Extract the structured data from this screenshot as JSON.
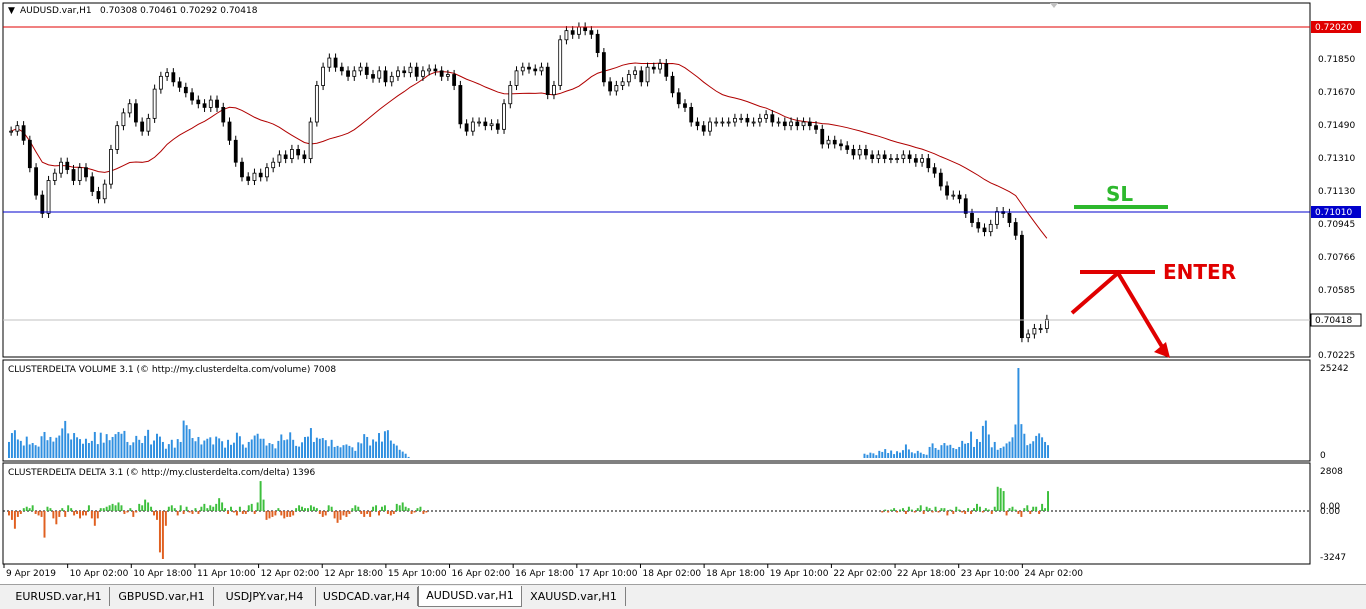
{
  "main_chart": {
    "symbol_label": "AUDUSD.var,H1",
    "ohlc": "0.70308 0.70461 0.70292 0.70418",
    "price_labels": [
      "0.71850",
      "0.71670",
      "0.71490",
      "0.71310",
      "0.71130",
      "0.70945",
      "0.70766",
      "0.70585",
      "0.70225"
    ],
    "resistance_price": "0.72020",
    "sl_price": "0.71010",
    "current_price": "0.70418",
    "annotation_sl": "SL",
    "annotation_enter": "ENTER",
    "colors": {
      "resistance": "#e00000",
      "sl_line": "#0000cc",
      "ma": "#b00000",
      "sl_mark": "#2db82d",
      "enter_mark": "#e00000",
      "candle": "#000000"
    }
  },
  "chart_data": [
    {
      "type": "candlestick",
      "title": "AUDUSD.var,H1",
      "close": [
        0.7145,
        0.7148,
        0.714,
        0.7125,
        0.711,
        0.71,
        0.7118,
        0.7122,
        0.7128,
        0.7124,
        0.7118,
        0.7125,
        0.712,
        0.7112,
        0.7108,
        0.7116,
        0.7135,
        0.7148,
        0.7155,
        0.716,
        0.715,
        0.7145,
        0.7152,
        0.7168,
        0.7175,
        0.7177,
        0.7172,
        0.7169,
        0.7166,
        0.7162,
        0.716,
        0.7158,
        0.7162,
        0.7158,
        0.715,
        0.714,
        0.7128,
        0.712,
        0.7118,
        0.7122,
        0.712,
        0.7125,
        0.7128,
        0.7132,
        0.713,
        0.7135,
        0.7132,
        0.713,
        0.715,
        0.717,
        0.718,
        0.7185,
        0.718,
        0.7178,
        0.7175,
        0.7178,
        0.718,
        0.7176,
        0.7174,
        0.7178,
        0.7172,
        0.7175,
        0.7178,
        0.7177,
        0.718,
        0.7175,
        0.7178,
        0.7179,
        0.7178,
        0.7175,
        0.7176,
        0.717,
        0.7149,
        0.7145,
        0.715,
        0.715,
        0.7148,
        0.7149,
        0.7146,
        0.716,
        0.717,
        0.7178,
        0.718,
        0.7179,
        0.7178,
        0.718,
        0.7165,
        0.717,
        0.7195,
        0.72,
        0.7198,
        0.7202,
        0.72,
        0.7198,
        0.7188,
        0.7172,
        0.7167,
        0.717,
        0.7172,
        0.7176,
        0.7178,
        0.7172,
        0.718,
        0.7179,
        0.7182,
        0.7175,
        0.7166,
        0.716,
        0.7158,
        0.715,
        0.7148,
        0.7145,
        0.715,
        0.715,
        0.715,
        0.715,
        0.7152,
        0.7152,
        0.715,
        0.715,
        0.7152,
        0.7154,
        0.715,
        0.715,
        0.7148,
        0.715,
        0.7148,
        0.715,
        0.7148,
        0.7146,
        0.7138,
        0.714,
        0.7138,
        0.7137,
        0.7135,
        0.7132,
        0.7135,
        0.7132,
        0.713,
        0.7132,
        0.713,
        0.713,
        0.713,
        0.7132,
        0.713,
        0.7128,
        0.713,
        0.7125,
        0.7122,
        0.7115,
        0.711,
        0.711,
        0.7108,
        0.71,
        0.7095,
        0.7092,
        0.709,
        0.7094,
        0.7101,
        0.71,
        0.7095,
        0.7088,
        0.7032,
        0.7034,
        0.7037,
        0.7037,
        0.7042
      ],
      "resistance": 0.7202,
      "sl_level": 0.7101,
      "last_price": 0.70418,
      "ylim": [
        0.70225,
        0.7202
      ],
      "x_labels": [
        "9 Apr 2019",
        "10 Apr 02:00",
        "10 Apr 18:00",
        "11 Apr 10:00",
        "12 Apr 02:00",
        "12 Apr 18:00",
        "15 Apr 10:00",
        "16 Apr 02:00",
        "16 Apr 18:00",
        "17 Apr 10:00",
        "18 Apr 02:00",
        "18 Apr 18:00",
        "19 Apr 10:00",
        "22 Apr 02:00",
        "22 Apr 18:00",
        "23 Apr 10:00",
        "24 Apr 02:00"
      ]
    },
    {
      "type": "bar",
      "title": "CLUSTERDELTA VOLUME 3.1 (© http://my.clusterdelta.com/volume) 7008",
      "values": [
        4500,
        7000,
        7800,
        5200,
        4800,
        3500,
        6000,
        3800,
        4200,
        3600,
        3200,
        6100,
        7300,
        5000,
        5900,
        4600,
        5700,
        6300,
        8300,
        10400,
        6900,
        5200,
        7000,
        5800,
        5300,
        4000,
        5400,
        4200,
        4800,
        7300,
        3900,
        7100,
        4300,
        6700,
        5000,
        5900,
        6700,
        7300,
        6800,
        7600,
        4500,
        3600,
        4400,
        6200,
        5100,
        4200,
        6200,
        7900,
        3800,
        4900,
        6800,
        6000,
        4500,
        2600,
        3900,
        5100,
        2900,
        5300,
        4500,
        10500,
        9200,
        8100,
        5600,
        4700,
        5900,
        3800,
        4900,
        5400,
        5800,
        3800,
        6000,
        5500,
        4700,
        2900,
        5100,
        3700,
        4300,
        7100,
        6100,
        3800,
        2900,
        4500,
        5200,
        6300,
        6800,
        5400,
        5400,
        3500,
        4200,
        3900,
        2700,
        4800,
        6600,
        5000,
        5200,
        7200,
        5100,
        3400,
        3200,
        4400,
        5900,
        6000,
        8400,
        4500,
        5700,
        5400,
        5600,
        5000,
        3300,
        5100,
        3100,
        3400,
        3000,
        3600,
        3800,
        3400,
        3000,
        2000,
        4400,
        4100,
        6700,
        5900,
        3500,
        5200,
        4600,
        7000,
        4600,
        7500,
        7800,
        4900,
        4000,
        3500,
        2300,
        1800,
        1200,
        300,
        0,
        0,
        0,
        0,
        0,
        0,
        0,
        0,
        0,
        0,
        0,
        0,
        0,
        0,
        0,
        0,
        0,
        0,
        0,
        0,
        0,
        0,
        0,
        0,
        0,
        0,
        0,
        0,
        0,
        0,
        0,
        0,
        0,
        0,
        0,
        0,
        0,
        0,
        0,
        0,
        0,
        0,
        0,
        0,
        0,
        0,
        0,
        0,
        0,
        0,
        0,
        0,
        0,
        0,
        0,
        0,
        0,
        0,
        0,
        0,
        0,
        0,
        0,
        0,
        0,
        0,
        0,
        0,
        0,
        0,
        0,
        0,
        0,
        0,
        0,
        0,
        0,
        0,
        0,
        0,
        0,
        0,
        0,
        0,
        0,
        0,
        0,
        0,
        0,
        0,
        0,
        0,
        0,
        0,
        0,
        0,
        0,
        0,
        0,
        0,
        0,
        0,
        0,
        0,
        0,
        0,
        0,
        0,
        0,
        0,
        0,
        0,
        0,
        0,
        0,
        0,
        0,
        0,
        0,
        0,
        0,
        0,
        0,
        0,
        0,
        0,
        0,
        0,
        0,
        0,
        0,
        0,
        0,
        0,
        0,
        0,
        0,
        0,
        0,
        0,
        0,
        0,
        0,
        0,
        0,
        0,
        0,
        0,
        0,
        0,
        0,
        0,
        0,
        1200,
        900,
        1500,
        1300,
        800,
        2000,
        1700,
        2500,
        1400,
        2100,
        1100,
        1900,
        1500,
        2200,
        3800,
        2400,
        1600,
        1300,
        2000,
        1500,
        1100,
        900,
        3100,
        4100,
        2800,
        2300,
        3600,
        4200,
        3500,
        3700,
        2800,
        2500,
        3100,
        4800,
        4000,
        4200,
        7400,
        3100,
        5300,
        4500,
        9000,
        10500,
        6600,
        3000,
        4500,
        2300,
        2800,
        3200,
        4100,
        4600,
        5800,
        9400,
        25242,
        9500,
        6800,
        3600,
        4000,
        4700,
        6200,
        6900,
        5800,
        4500,
        3600
      ],
      "ylim": [
        0,
        25242
      ],
      "tick_labels": [
        "25242",
        "0"
      ]
    },
    {
      "type": "bar",
      "title": "CLUSTERDELTA DELTA 3.1 (© http://my.clusterdelta.com/delta) 1396",
      "values": [
        -300,
        -600,
        -1200,
        -400,
        -200,
        200,
        300,
        200,
        400,
        -200,
        -300,
        -400,
        -1800,
        300,
        200,
        -500,
        -900,
        -400,
        200,
        -400,
        400,
        200,
        -300,
        -200,
        -500,
        -300,
        -300,
        400,
        -500,
        -1000,
        -500,
        200,
        200,
        300,
        400,
        500,
        400,
        600,
        400,
        -200,
        -100,
        200,
        -400,
        -100,
        500,
        400,
        800,
        600,
        300,
        -300,
        -600,
        -2800,
        -3247,
        -1000,
        300,
        400,
        200,
        -300,
        400,
        -200,
        300,
        -100,
        -200,
        200,
        -200,
        300,
        500,
        200,
        400,
        300,
        500,
        900,
        600,
        200,
        -200,
        300,
        -100,
        -300,
        300,
        -200,
        -200,
        400,
        500,
        -200,
        600,
        2100,
        800,
        -600,
        -500,
        -400,
        -300,
        200,
        -300,
        -500,
        -400,
        -400,
        -300,
        200,
        400,
        300,
        200,
        200,
        400,
        300,
        200,
        -200,
        -400,
        -300,
        400,
        300,
        -500,
        -800,
        -600,
        -300,
        -400,
        -200,
        200,
        400,
        300,
        -200,
        -400,
        -200,
        -400,
        300,
        400,
        -300,
        300,
        400,
        -200,
        -300,
        -200,
        500,
        400,
        600,
        300,
        200,
        -200,
        -100,
        200,
        300,
        -200,
        -100,
        0,
        0,
        0,
        0,
        0,
        0,
        0,
        0,
        0,
        0,
        0,
        0,
        0,
        0,
        0,
        0,
        0,
        0,
        0,
        0,
        0,
        0,
        0,
        0,
        0,
        0,
        0,
        0,
        0,
        0,
        0,
        0,
        0,
        0,
        0,
        0,
        0,
        0,
        0,
        0,
        0,
        0,
        0,
        0,
        0,
        0,
        0,
        0,
        0,
        0,
        0,
        0,
        0,
        0,
        0,
        0,
        0,
        0,
        0,
        0,
        0,
        0,
        0,
        0,
        0,
        0,
        0,
        0,
        0,
        0,
        0,
        0,
        0,
        0,
        0,
        0,
        0,
        0,
        0,
        0,
        0,
        0,
        0,
        0,
        0,
        0,
        0,
        0,
        0,
        0,
        0,
        0,
        0,
        0,
        0,
        0,
        0,
        0,
        0,
        0,
        0,
        0,
        0,
        0,
        0,
        0,
        0,
        0,
        0,
        0,
        0,
        0,
        0,
        0,
        0,
        0,
        0,
        0,
        0,
        0,
        0,
        0,
        0,
        0,
        0,
        0,
        0,
        0,
        0,
        0,
        0,
        0,
        0,
        0,
        0,
        0,
        0,
        0,
        0,
        0,
        0,
        0,
        0,
        0,
        0,
        0,
        0,
        0,
        0,
        0,
        0,
        0,
        0,
        -100,
        100,
        -100,
        100,
        200,
        -100,
        100,
        200,
        -200,
        300,
        100,
        -100,
        200,
        400,
        -200,
        300,
        200,
        -100,
        300,
        -100,
        200,
        200,
        -300,
        100,
        -200,
        300,
        100,
        -100,
        -200,
        200,
        -200,
        200,
        500,
        300,
        -100,
        200,
        100,
        -200,
        300,
        1700,
        1600,
        1400,
        -300,
        200,
        300,
        100,
        -200,
        -400,
        200,
        400,
        -200,
        300,
        300,
        -200,
        500,
        200,
        1396
      ],
      "ylim": [
        -3247,
        2808
      ],
      "tick_labels": [
        "2808",
        "0.00",
        "0.00",
        "-3247"
      ]
    }
  ],
  "tabs": [
    {
      "label": "EURUSD.var,H1",
      "active": false
    },
    {
      "label": "GBPUSD.var,H1",
      "active": false
    },
    {
      "label": "USDJPY.var,H4",
      "active": false
    },
    {
      "label": "USDCAD.var,H4",
      "active": false
    },
    {
      "label": "AUDUSD.var,H1",
      "active": true
    },
    {
      "label": "XAUUSD.var,H1",
      "active": false
    }
  ]
}
